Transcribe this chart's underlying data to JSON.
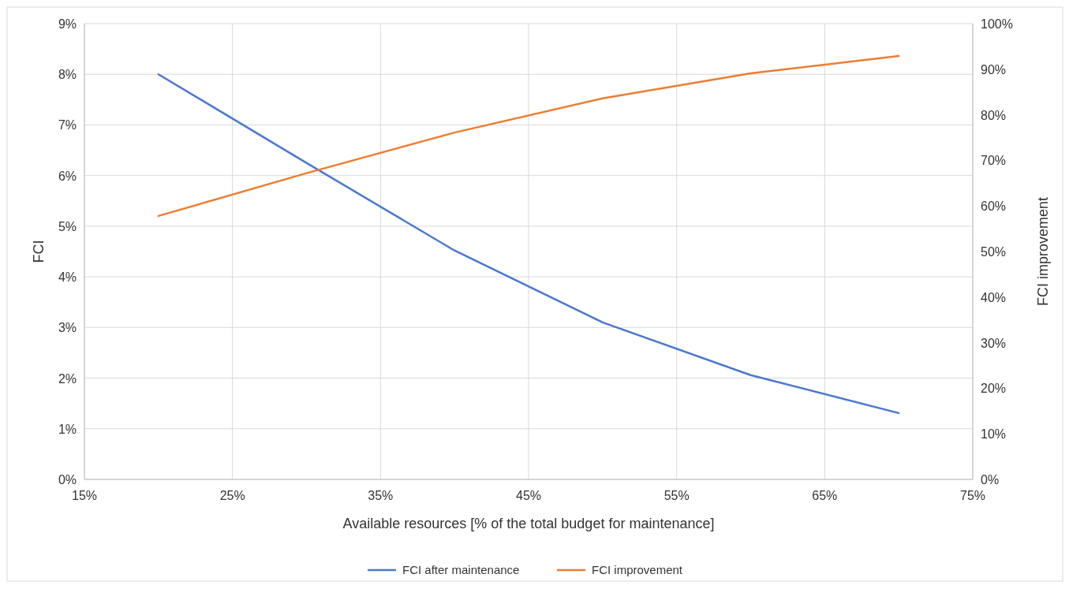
{
  "chart_data": {
    "type": "line",
    "xlabel": "Available resources [% of the total budget for maintenance]",
    "ylabel": "FCI",
    "y2label": "FCI improvement",
    "x": [
      20,
      30,
      40,
      50,
      60,
      70
    ],
    "series": [
      {
        "name": "FCI after maintenance",
        "color": "#4a78d0",
        "values": [
          8.0,
          6.25,
          4.52,
          3.1,
          2.06,
          1.31
        ]
      },
      {
        "name": "FCI improvement",
        "color": "#ed7d31",
        "axis": "y2",
        "values": [
          57.8,
          67.2,
          76.1,
          83.6,
          89.1,
          92.9
        ]
      }
    ],
    "xlim": [
      15,
      75
    ],
    "xticks": [
      {
        "value": 15,
        "label": "15%"
      },
      {
        "value": 25,
        "label": "25%"
      },
      {
        "value": 35,
        "label": "35%"
      },
      {
        "value": 45,
        "label": "45%"
      },
      {
        "value": 55,
        "label": "55%"
      },
      {
        "value": 65,
        "label": "65%"
      },
      {
        "value": 75,
        "label": "75%"
      }
    ],
    "ylim": [
      0,
      9
    ],
    "yticks": [
      {
        "value": 0,
        "label": "0%"
      },
      {
        "value": 1,
        "label": "1%"
      },
      {
        "value": 2,
        "label": "2%"
      },
      {
        "value": 3,
        "label": "3%"
      },
      {
        "value": 4,
        "label": "4%"
      },
      {
        "value": 5,
        "label": "5%"
      },
      {
        "value": 6,
        "label": "6%"
      },
      {
        "value": 7,
        "label": "7%"
      },
      {
        "value": 8,
        "label": "8%"
      },
      {
        "value": 9,
        "label": "9%"
      }
    ],
    "y2lim": [
      0,
      100
    ],
    "y2ticks": [
      {
        "value": 0,
        "label": "0%"
      },
      {
        "value": 10,
        "label": "10%"
      },
      {
        "value": 20,
        "label": "20%"
      },
      {
        "value": 30,
        "label": "30%"
      },
      {
        "value": 40,
        "label": "40%"
      },
      {
        "value": 50,
        "label": "50%"
      },
      {
        "value": 60,
        "label": "60%"
      },
      {
        "value": 70,
        "label": "70%"
      },
      {
        "value": 80,
        "label": "80%"
      },
      {
        "value": 90,
        "label": "90%"
      },
      {
        "value": 100,
        "label": "100%"
      }
    ],
    "grid": true,
    "legend": "bottom",
    "marker": "none",
    "line_style": "solid"
  }
}
